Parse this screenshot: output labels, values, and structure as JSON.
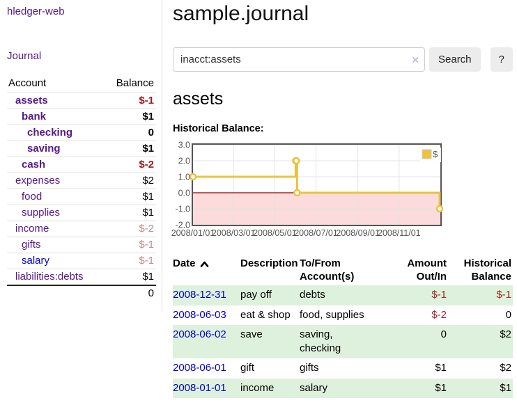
{
  "app": {
    "title": "hledger-web"
  },
  "sidebar": {
    "journal_label": "Journal",
    "table": {
      "headers": {
        "account": "Account",
        "balance": "Balance"
      },
      "rows": [
        {
          "label": "assets",
          "balance": "$-1",
          "indent": 1,
          "bold": true,
          "balance_style": "neg-strong",
          "link_style": "purple"
        },
        {
          "label": "bank",
          "balance": "$1",
          "indent": 2,
          "bold": true,
          "balance_style": "plain",
          "link_style": "purple"
        },
        {
          "label": "checking",
          "balance": "0",
          "indent": 3,
          "bold": true,
          "balance_style": "plain",
          "link_style": "purple"
        },
        {
          "label": "saving",
          "balance": "$1",
          "indent": 3,
          "bold": true,
          "balance_style": "plain",
          "link_style": "purple"
        },
        {
          "label": "cash",
          "balance": "$-2",
          "indent": 2,
          "bold": true,
          "balance_style": "neg-strong",
          "link_style": "purple"
        },
        {
          "label": "expenses",
          "balance": "$2",
          "indent": 1,
          "bold": false,
          "balance_style": "plain",
          "link_style": "purple"
        },
        {
          "label": "food",
          "balance": "$1",
          "indent": 2,
          "bold": false,
          "balance_style": "plain",
          "link_style": "purple"
        },
        {
          "label": "supplies",
          "balance": "$1",
          "indent": 2,
          "bold": false,
          "balance_style": "plain",
          "link_style": "purple"
        },
        {
          "label": "income",
          "balance": "$-2",
          "indent": 1,
          "bold": false,
          "balance_style": "neg-soft",
          "link_style": "purple"
        },
        {
          "label": "gifts",
          "balance": "$-1",
          "indent": 2,
          "bold": false,
          "balance_style": "neg-soft",
          "link_style": "purple"
        },
        {
          "label": "salary",
          "balance": "$-1",
          "indent": 2,
          "bold": false,
          "balance_style": "neg-soft",
          "link_style": "blue"
        },
        {
          "label": "liabilities:debts",
          "balance": "$1",
          "indent": 1,
          "bold": false,
          "balance_style": "plain",
          "link_style": "purple"
        }
      ],
      "total": "0"
    }
  },
  "main": {
    "title": "sample.journal",
    "search": {
      "value": "inacct:assets",
      "clear_icon": "×",
      "button_label": "Search",
      "help_label": "?"
    },
    "account_heading": "assets",
    "chart_label": "Historical Balance:"
  },
  "chart_data": {
    "type": "line",
    "step": true,
    "title": "Historical Balance",
    "series": [
      {
        "name": "$",
        "color": "#edc240",
        "points": [
          [
            "2008-01-01",
            1
          ],
          [
            "2008-06-01",
            2
          ],
          [
            "2008-06-02",
            2
          ],
          [
            "2008-06-03",
            0
          ],
          [
            "2008-12-31",
            -1
          ]
        ]
      }
    ],
    "xrange": [
      "2008-01-01",
      "2009-01-01"
    ],
    "ylim": [
      -2,
      3
    ],
    "yticks": [
      {
        "v": 3,
        "label": "3.0"
      },
      {
        "v": 2,
        "label": "2.0"
      },
      {
        "v": 1,
        "label": "1.0"
      },
      {
        "v": 0,
        "label": "0.0"
      },
      {
        "v": -1,
        "label": "-1.0"
      },
      {
        "v": -2,
        "label": "-2.0"
      }
    ],
    "xticks": [
      {
        "date": "2008-01-01",
        "label": "2008/01/01"
      },
      {
        "date": "2008-03-01",
        "label": "2008/03/01"
      },
      {
        "date": "2008-05-01",
        "label": "2008/05/01"
      },
      {
        "date": "2008-07-01",
        "label": "2008/07/01"
      },
      {
        "date": "2008-09-01",
        "label": "2008/09/01"
      },
      {
        "date": "2008-11-01",
        "label": "2008/11/01"
      }
    ],
    "legend_position": "top-right",
    "grid": true,
    "colors": {
      "negative_region": "#fbdbdb",
      "zero_line": "#8b0000",
      "grid": "#e3e3e3",
      "border": "#545454",
      "tick_text": "#545454",
      "marker_fill": "#ffffff",
      "legend_bg": "#ffffff"
    }
  },
  "register": {
    "headers": [
      {
        "line1": "Date",
        "line2": ""
      },
      {
        "line1": "Description",
        "line2": ""
      },
      {
        "line1": "To/From",
        "line2": "Account(s)"
      },
      {
        "line1": "Amount",
        "line2": "Out/In"
      },
      {
        "line1": "Historical",
        "line2": "Balance"
      }
    ],
    "rows": [
      {
        "date": "2008-12-31",
        "description": "pay off",
        "accounts": "debts",
        "amount": "$-1",
        "amount_negative": true,
        "balance": "$-1",
        "balance_negative": true
      },
      {
        "date": "2008-06-03",
        "description": "eat & shop",
        "accounts": "food, supplies",
        "amount": "$-2",
        "amount_negative": true,
        "balance": "0",
        "balance_negative": false
      },
      {
        "date": "2008-06-02",
        "description": "save",
        "accounts": "saving, checking",
        "amount": "0",
        "amount_negative": false,
        "balance": "$2",
        "balance_negative": false
      },
      {
        "date": "2008-06-01",
        "description": "gift",
        "accounts": "gifts",
        "amount": "$1",
        "amount_negative": false,
        "balance": "$2",
        "balance_negative": false
      },
      {
        "date": "2008-01-01",
        "description": "income",
        "accounts": "salary",
        "amount": "$1",
        "amount_negative": false,
        "balance": "$1",
        "balance_negative": false
      }
    ]
  },
  "colors": {
    "link_purple": "#551a8b",
    "link_blue": "#0000cc",
    "negative_strong": "#9e1c1c",
    "negative_soft": "#c38888",
    "row_stripe_green": "#def1dc",
    "chart_series_gold": "#edc240"
  }
}
